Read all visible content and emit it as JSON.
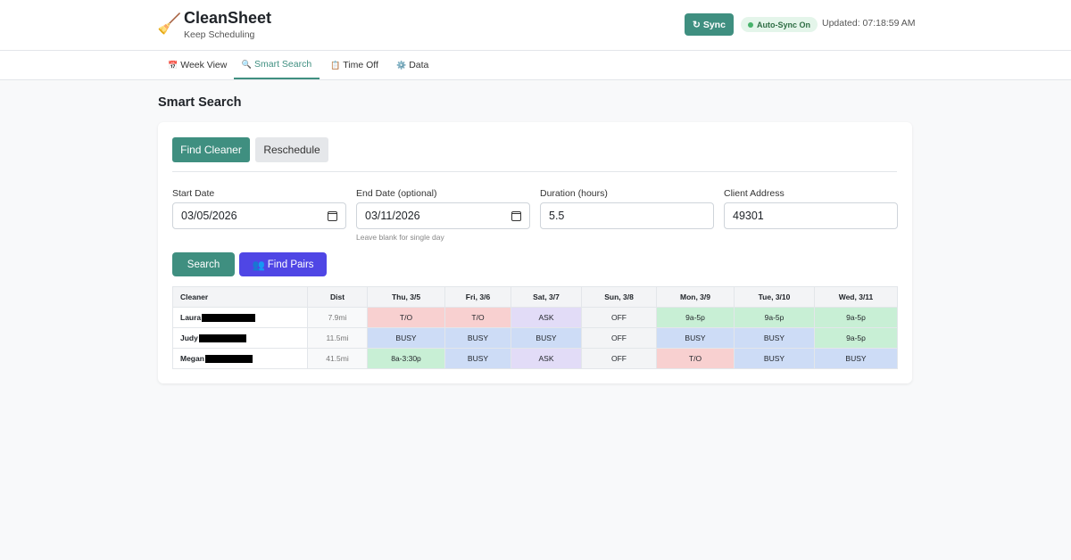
{
  "app": {
    "icon": "broom-icon",
    "title": "CleanSheet",
    "subtitle": "Keep Scheduling"
  },
  "header": {
    "sync_icon": "↻",
    "sync_label": "Sync",
    "autosync_label": "Auto-Sync On",
    "updated_text": "Updated: 07:18:59 AM"
  },
  "tabs": [
    {
      "icon": "📅",
      "label": "Week View",
      "active": false
    },
    {
      "icon": "🔍",
      "label": "Smart Search",
      "active": true
    },
    {
      "icon": "📋",
      "label": "Time Off",
      "active": false
    },
    {
      "icon": "⚙️",
      "label": "Data",
      "active": false
    }
  ],
  "page_title": "Smart Search",
  "modes": {
    "find_label": "Find Cleaner",
    "reschedule_label": "Reschedule"
  },
  "form": {
    "start_label": "Start Date",
    "start_value": "03/05/2026",
    "end_label": "End Date (optional)",
    "end_value": "03/11/2026",
    "end_hint": "Leave blank for single day",
    "duration_label": "Duration (hours)",
    "duration_value": "5.5",
    "address_label": "Client Address",
    "address_value": "49301"
  },
  "actions": {
    "search_label": "Search",
    "pairs_icon": "👥",
    "pairs_label": "Find Pairs"
  },
  "results": {
    "headers": [
      "Cleaner",
      "Dist",
      "Thu, 3/5",
      "Fri, 3/6",
      "Sat, 3/7",
      "Sun, 3/8",
      "Mon, 3/9",
      "Tue, 3/10",
      "Wed, 3/11"
    ],
    "rows": [
      {
        "name": "Laura",
        "dist": "7.9mi",
        "cells": [
          "T/O",
          "T/O",
          "ASK",
          "OFF",
          "9a-5p",
          "9a-5p",
          "9a-5p"
        ]
      },
      {
        "name": "Judy",
        "dist": "11.5mi",
        "cells": [
          "BUSY",
          "BUSY",
          "BUSY",
          "OFF",
          "BUSY",
          "BUSY",
          "9a-5p"
        ]
      },
      {
        "name": "Megan",
        "dist": "41.5mi",
        "cells": [
          "8a-3:30p",
          "BUSY",
          "ASK",
          "OFF",
          "T/O",
          "BUSY",
          "BUSY"
        ]
      }
    ]
  },
  "colors": {
    "accent": "#3f8f80",
    "pairs": "#4f46e5",
    "time_off": "#f8d0d0",
    "ask": "#e2dcf7",
    "off": "#f3f4f6",
    "available": "#c8efd5",
    "busy": "#cddcf6"
  }
}
